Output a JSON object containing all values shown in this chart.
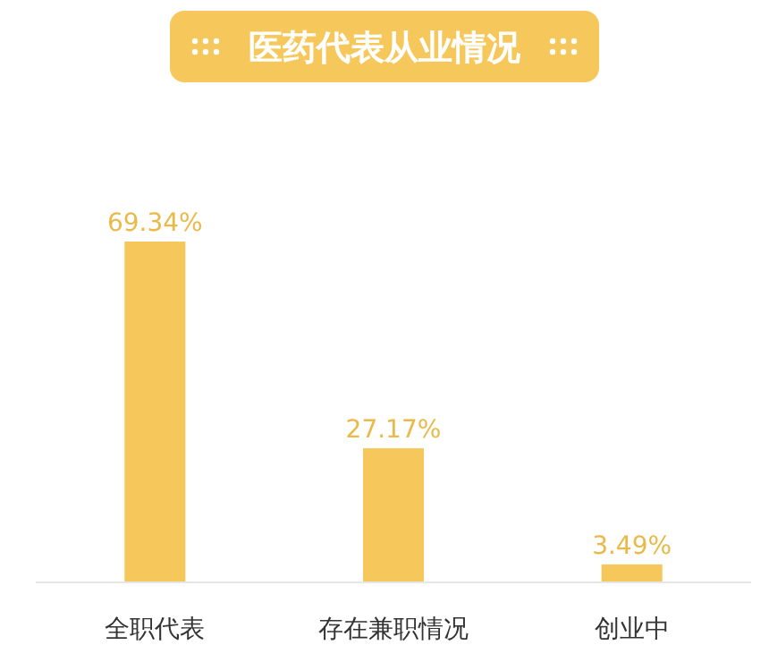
{
  "chart_data": {
    "type": "bar",
    "title": "医药代表从业情况",
    "categories": [
      "全职代表",
      "存在兼职情况",
      "创业中"
    ],
    "values": [
      69.34,
      27.17,
      3.49
    ],
    "value_labels": [
      "69.34%",
      "27.17%",
      "3.49%"
    ],
    "color": "#f6c75a"
  }
}
